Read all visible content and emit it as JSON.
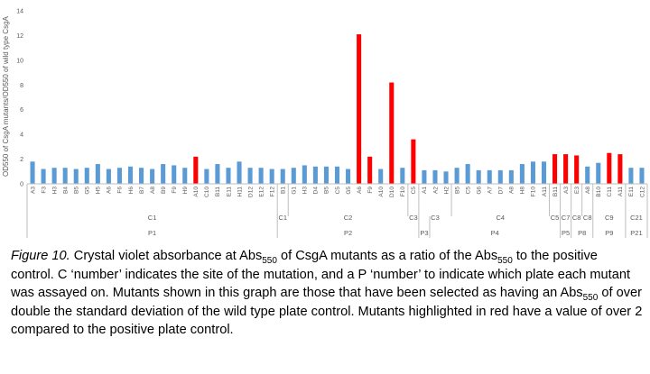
{
  "chart_data": {
    "type": "bar",
    "ylabel": "OD550 of CsgA mutants/OD550 of wild type CsgA",
    "ylim": [
      0,
      14
    ],
    "yticks": [
      "0",
      "2",
      "4",
      "6",
      "8",
      "10",
      "12",
      "14"
    ],
    "grid": false,
    "colors": {
      "normal": "#5b9bd5",
      "highlight": "#ff0000"
    },
    "categories": [
      "A3",
      "F3",
      "H3",
      "B4",
      "B5",
      "G5",
      "H5",
      "A6",
      "F6",
      "H6",
      "B7",
      "A8",
      "B9",
      "F9",
      "H9",
      "A10",
      "C10",
      "B11",
      "E11",
      "H11",
      "D12",
      "E12",
      "F12",
      "B1",
      "G1",
      "H3",
      "D4",
      "B5",
      "C5",
      "G5",
      "A6",
      "F9",
      "A10",
      "D10",
      "F10",
      "C5",
      "A1",
      "A2",
      "H2",
      "B5",
      "C5",
      "G6",
      "A7",
      "D7",
      "A8",
      "H8",
      "F10",
      "A11",
      "B11",
      "A3",
      "E3",
      "A8",
      "B10",
      "C11",
      "A11",
      "E11",
      "C12"
    ],
    "values": [
      1.8,
      1.2,
      1.3,
      1.3,
      1.2,
      1.3,
      1.6,
      1.2,
      1.3,
      1.4,
      1.3,
      1.2,
      1.6,
      1.5,
      1.3,
      2.2,
      1.2,
      1.6,
      1.3,
      1.8,
      1.3,
      1.3,
      1.2,
      1.2,
      1.3,
      1.5,
      1.4,
      1.4,
      1.4,
      1.2,
      12.1,
      2.2,
      1.2,
      8.2,
      1.3,
      3.6,
      1.1,
      1.1,
      1.0,
      1.3,
      1.6,
      1.1,
      1.1,
      1.1,
      1.1,
      1.6,
      1.8,
      1.8,
      2.4,
      2.4,
      2.3,
      1.4,
      1.7,
      2.5,
      2.4,
      1.3,
      1.3
    ],
    "highlighted": [
      false,
      false,
      false,
      false,
      false,
      false,
      false,
      false,
      false,
      false,
      false,
      false,
      false,
      false,
      false,
      true,
      false,
      false,
      false,
      false,
      false,
      false,
      false,
      false,
      false,
      false,
      false,
      false,
      false,
      false,
      true,
      true,
      false,
      true,
      false,
      true,
      false,
      false,
      false,
      false,
      false,
      false,
      false,
      false,
      false,
      false,
      false,
      false,
      true,
      true,
      true,
      false,
      false,
      true,
      true,
      false,
      false
    ],
    "site_groups": [
      {
        "label": "C1",
        "count": 23
      },
      {
        "label": "C1",
        "count": 1
      },
      {
        "label": "C2",
        "count": 11
      },
      {
        "label": "C3",
        "count": 1
      },
      {
        "label": "C3",
        "count": 3
      },
      {
        "label": "C4",
        "count": 9
      },
      {
        "label": "C5",
        "count": 1
      },
      {
        "label": "C7",
        "count": 1
      },
      {
        "label": "C8",
        "count": 1
      },
      {
        "label": "C8",
        "count": 1
      },
      {
        "label": "C9",
        "count": 3
      },
      {
        "label": "C21",
        "count": 2
      }
    ],
    "plate_groups": [
      {
        "label": "P1",
        "count": 23
      },
      {
        "label": "P2",
        "count": 13
      },
      {
        "label": "P3",
        "count": 1
      },
      {
        "label": "P4",
        "count": 12
      },
      {
        "label": "P5",
        "count": 1
      },
      {
        "label": "P8",
        "count": 2
      },
      {
        "label": "P9",
        "count": 3
      },
      {
        "label": "P21",
        "count": 2
      }
    ]
  },
  "caption": {
    "fig_label": "Figure 10.",
    "t1": " Crystal violet absorbance at Abs",
    "s1": "550",
    "t2": " of CsgA mutants as a ratio of the Abs",
    "s2": "550",
    "t3": " to the positive control. C ‘number’ indicates the site of the mutation, and a P ‘number’ to indicate which plate each mutant was assayed on. Mutants shown in this graph are those that have been selected as having an Abs",
    "s3": "550",
    "t4": " of over double the standard deviation of the wild type plate control. Mutants highlighted in red have a value of over 2 compared to the positive plate control."
  }
}
